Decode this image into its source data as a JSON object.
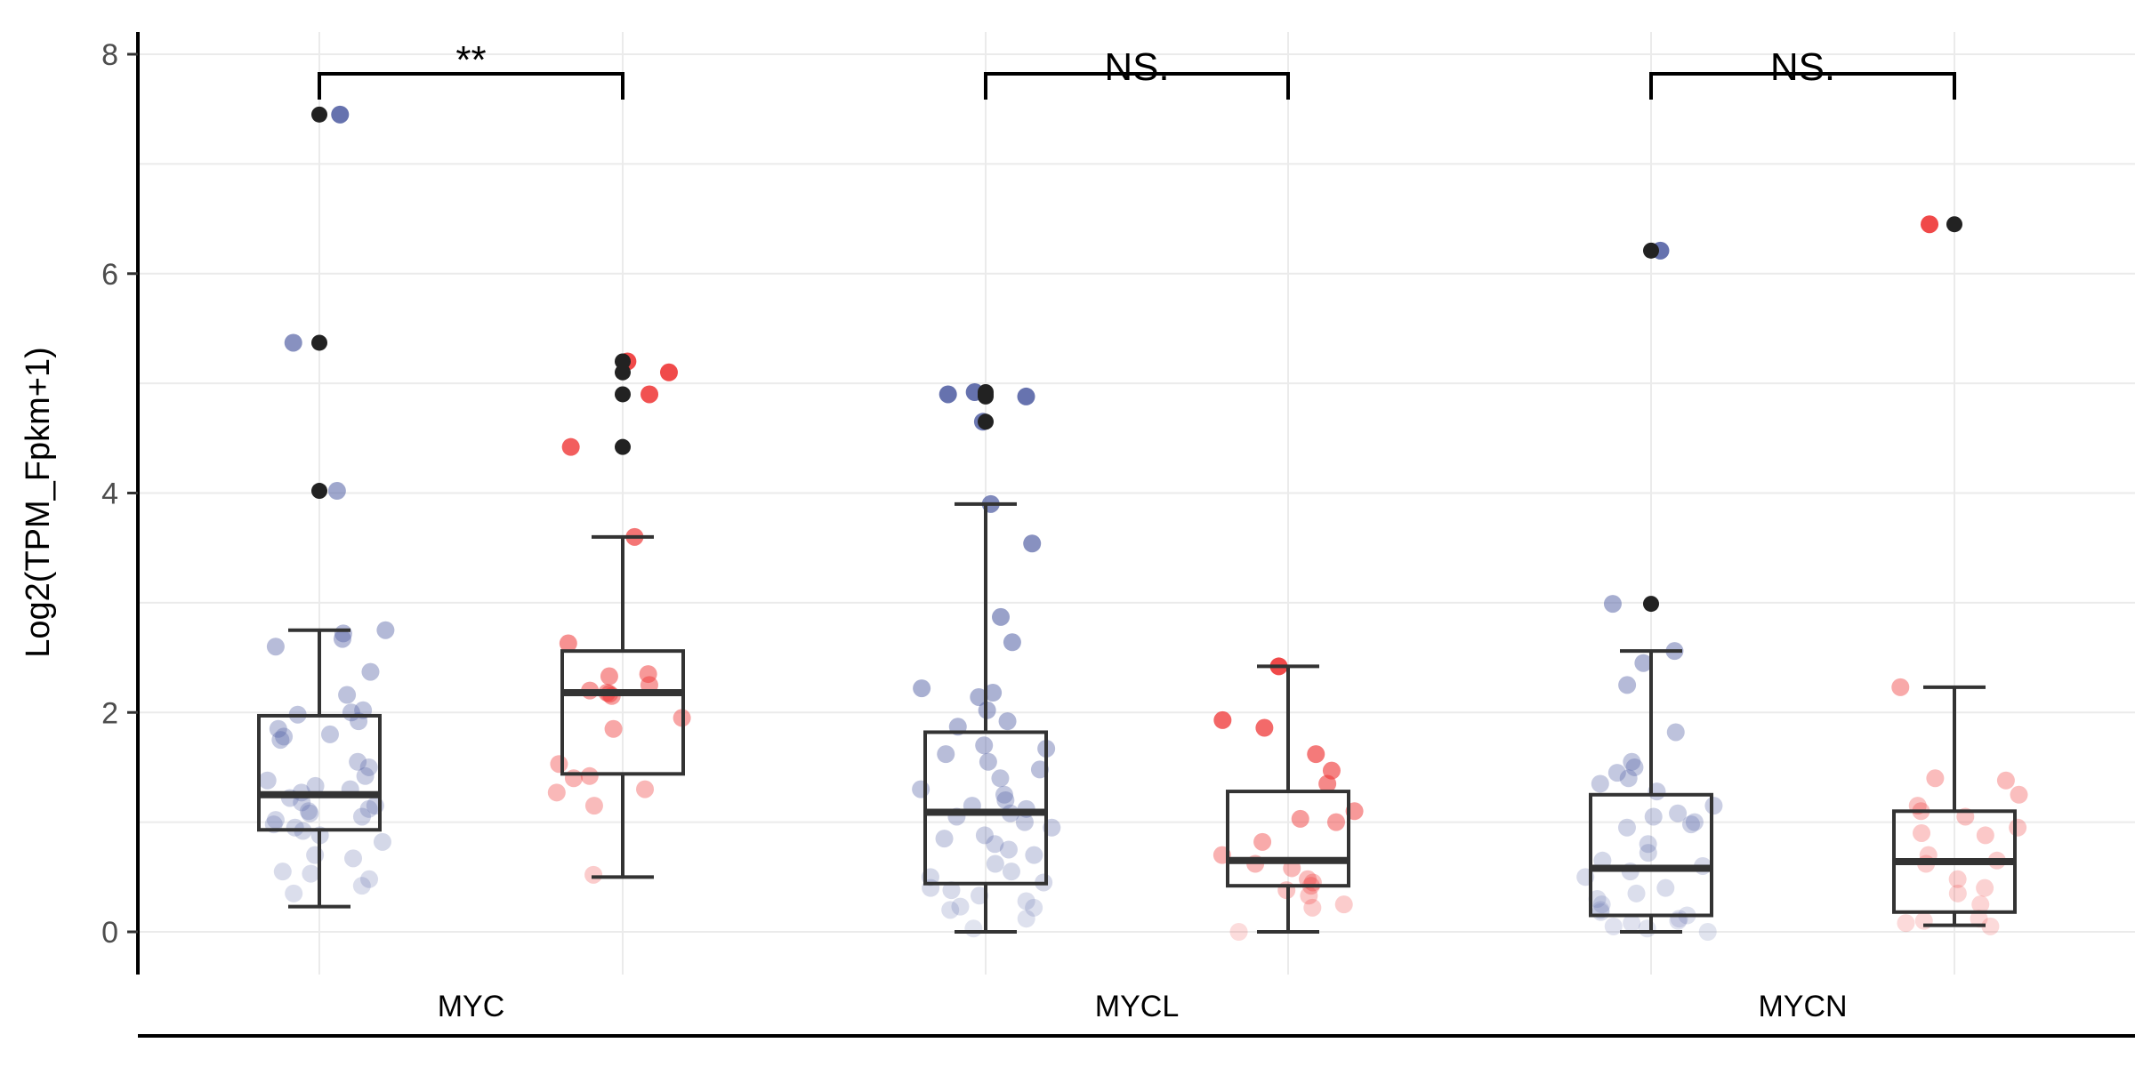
{
  "chart_data": {
    "type": "box",
    "ylabel": "Log2(TPM_Fpkm+1)",
    "xlabel": "",
    "ylim": [
      -0.35,
      8.2
    ],
    "yticks": [
      0,
      2,
      4,
      6,
      8
    ],
    "categories": [
      "MYC",
      "MYCL",
      "MYCN"
    ],
    "colors": {
      "group_a": "#5a67a8",
      "group_b": "#ef3b3b",
      "outlier_black": "#222222"
    },
    "significance": [
      "**",
      "NS.",
      "NS."
    ],
    "groups": [
      {
        "category": "MYC",
        "group": "a",
        "box": {
          "whisker_low": 0.23,
          "q1": 0.93,
          "median": 1.25,
          "q3": 1.97,
          "whisker_high": 2.75
        },
        "outliers": [
          4.02,
          5.37,
          7.45
        ],
        "points": [
          7.45,
          5.37,
          4.02,
          2.75,
          2.72,
          2.67,
          2.6,
          2.37,
          2.16,
          2.02,
          2.0,
          1.98,
          1.92,
          1.85,
          1.8,
          1.78,
          1.75,
          1.55,
          1.5,
          1.42,
          1.38,
          1.33,
          1.3,
          1.27,
          1.22,
          1.18,
          1.15,
          1.12,
          1.1,
          1.08,
          1.05,
          1.02,
          0.98,
          0.95,
          0.92,
          0.88,
          0.82,
          0.7,
          0.67,
          0.55,
          0.53,
          0.48,
          0.42,
          0.35
        ]
      },
      {
        "category": "MYC",
        "group": "b",
        "box": {
          "whisker_low": 0.5,
          "q1": 1.44,
          "median": 2.18,
          "q3": 2.56,
          "whisker_high": 3.6
        },
        "outliers": [
          4.42,
          4.9,
          5.1,
          5.2
        ],
        "points": [
          5.2,
          5.1,
          4.9,
          4.42,
          3.6,
          2.63,
          2.35,
          2.33,
          2.25,
          2.2,
          2.18,
          2.17,
          2.15,
          1.95,
          1.85,
          1.53,
          1.42,
          1.4,
          1.3,
          1.27,
          1.15,
          0.52
        ]
      },
      {
        "category": "MYCL",
        "group": "a",
        "box": {
          "whisker_low": 0.0,
          "q1": 0.44,
          "median": 1.09,
          "q3": 1.82,
          "whisker_high": 3.9
        },
        "outliers": [
          4.65,
          4.88,
          4.9,
          4.92
        ],
        "points": [
          4.92,
          4.9,
          4.88,
          4.65,
          3.9,
          3.54,
          2.87,
          2.64,
          2.22,
          2.18,
          2.14,
          2.02,
          1.92,
          1.87,
          1.7,
          1.67,
          1.62,
          1.55,
          1.48,
          1.4,
          1.3,
          1.25,
          1.2,
          1.15,
          1.12,
          1.08,
          1.05,
          1.0,
          0.95,
          0.88,
          0.85,
          0.8,
          0.75,
          0.7,
          0.62,
          0.55,
          0.5,
          0.45,
          0.4,
          0.38,
          0.33,
          0.28,
          0.23,
          0.22,
          0.2,
          0.12,
          0.03
        ]
      },
      {
        "category": "MYCL",
        "group": "b",
        "box": {
          "whisker_low": 0.0,
          "q1": 0.42,
          "median": 0.65,
          "q3": 1.28,
          "whisker_high": 2.42
        },
        "outliers": [],
        "points": [
          2.42,
          1.93,
          1.86,
          1.62,
          1.47,
          1.35,
          1.1,
          1.03,
          1.0,
          0.82,
          0.7,
          0.62,
          0.58,
          0.48,
          0.45,
          0.42,
          0.38,
          0.33,
          0.25,
          0.22,
          0.0
        ]
      },
      {
        "category": "MYCN",
        "group": "a",
        "box": {
          "whisker_low": 0.0,
          "q1": 0.15,
          "median": 0.58,
          "q3": 1.25,
          "whisker_high": 2.56
        },
        "outliers": [
          2.99,
          6.21
        ],
        "points": [
          6.21,
          2.99,
          2.56,
          2.45,
          2.25,
          1.82,
          1.55,
          1.5,
          1.45,
          1.4,
          1.35,
          1.28,
          1.15,
          1.08,
          1.05,
          1.0,
          0.98,
          0.95,
          0.8,
          0.72,
          0.65,
          0.6,
          0.55,
          0.5,
          0.4,
          0.35,
          0.3,
          0.25,
          0.2,
          0.18,
          0.15,
          0.12,
          0.1,
          0.08,
          0.05,
          0.03,
          0.0
        ]
      },
      {
        "category": "MYCN",
        "group": "b",
        "box": {
          "whisker_low": 0.06,
          "q1": 0.18,
          "median": 0.64,
          "q3": 1.1,
          "whisker_high": 2.23
        },
        "outliers": [
          6.45
        ],
        "points": [
          6.45,
          2.23,
          1.38,
          1.4,
          1.25,
          1.15,
          1.1,
          1.05,
          0.95,
          0.9,
          0.88,
          0.7,
          0.65,
          0.62,
          0.48,
          0.4,
          0.35,
          0.25,
          0.12,
          0.1,
          0.08,
          0.05
        ]
      }
    ]
  }
}
